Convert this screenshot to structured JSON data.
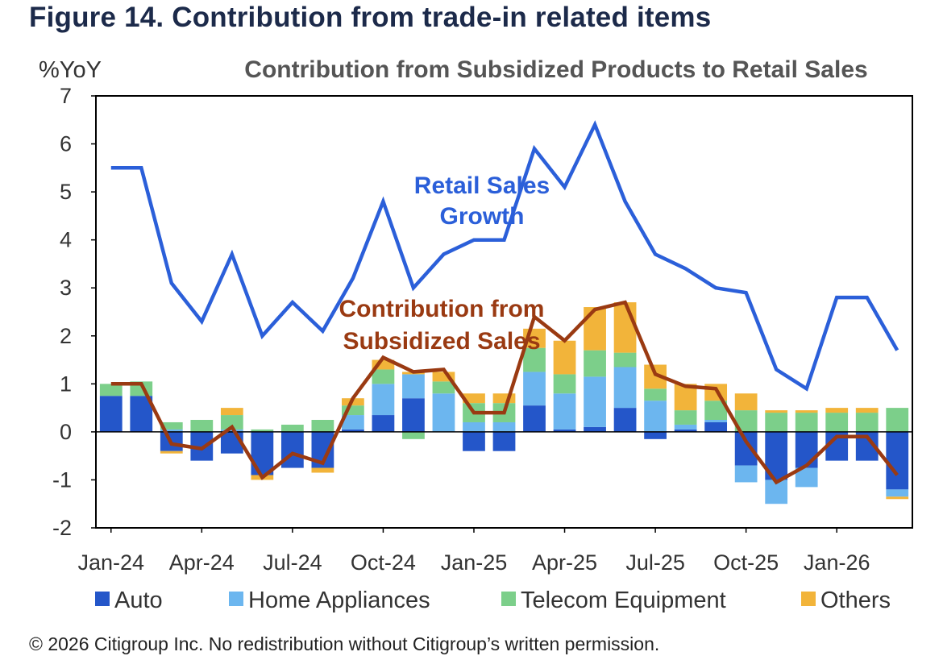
{
  "figure_title": "Figure 14. Contribution from trade-in related items",
  "copyright": "© 2026 Citigroup Inc. No redistribution without Citigroup’s written permission.",
  "colors": {
    "Auto": "#2456c9",
    "Home Appliances": "#6cb6ef",
    "Telecom Equipment": "#7ccf8a",
    "Others": "#f2b43a",
    "Retail Sales Growth": "#2b5fd9",
    "Contribution from Subsidized Sales": "#9a3a12"
  },
  "chart_data": {
    "type": "bar",
    "title": "Contribution from Subsidized Products to Retail Sales",
    "ylabel": "%YoY",
    "xlabel": "",
    "ylim": [
      -2,
      7
    ],
    "yticks": [
      7,
      6,
      5,
      4,
      3,
      2,
      1,
      0,
      -1,
      -2
    ],
    "grid": false,
    "stacked": true,
    "legend_position": "bottom",
    "categories": [
      "Jan-24",
      "Feb-24",
      "Mar-24",
      "Apr-24",
      "May-24",
      "Jun-24",
      "Jul-24",
      "Aug-24",
      "Sep-24",
      "Oct-24",
      "Nov-24",
      "Dec-24",
      "Jan-25",
      "Feb-25",
      "Mar-25",
      "Apr-25",
      "May-25",
      "Jun-25",
      "Jul-25",
      "Aug-25",
      "Sep-25",
      "Oct-25",
      "Nov-25",
      "Dec-25",
      "Jan-26",
      "Feb-26",
      "Mar-26"
    ],
    "xtick_labels": [
      "Jan-24",
      "Apr-24",
      "Jul-24",
      "Oct-24",
      "Jan-25",
      "Apr-25",
      "Jul-25",
      "Oct-25",
      "Jan-26"
    ],
    "series": [
      {
        "name": "Auto",
        "kind": "bar",
        "values": [
          0.75,
          0.75,
          -0.4,
          -0.6,
          -0.45,
          -0.9,
          -0.75,
          -0.75,
          0.05,
          0.35,
          0.7,
          0,
          -0.4,
          -0.4,
          0.55,
          0.05,
          0.1,
          0.5,
          -0.15,
          0.05,
          0.2,
          -0.7,
          -1.0,
          -0.75,
          -0.6,
          -0.6,
          -1.2
        ]
      },
      {
        "name": "Home Appliances",
        "kind": "bar",
        "values": [
          0,
          0,
          0.05,
          0,
          0.05,
          0,
          0,
          0,
          0.3,
          0.65,
          0.5,
          0.8,
          0.2,
          0.2,
          0.7,
          0.75,
          1.05,
          0.85,
          0.65,
          0.1,
          0.05,
          -0.35,
          -0.5,
          -0.4,
          0,
          0,
          -0.15
        ]
      },
      {
        "name": "Telecom Equipment",
        "kind": "bar",
        "values": [
          0.25,
          0.3,
          0.15,
          0.25,
          0.3,
          0.05,
          0.15,
          0.25,
          0.2,
          0.3,
          -0.15,
          0.25,
          0.4,
          0.4,
          0.5,
          0.4,
          0.55,
          0.3,
          0.25,
          0.3,
          0.4,
          0.45,
          0.4,
          0.4,
          0.4,
          0.4,
          0.5
        ]
      },
      {
        "name": "Others",
        "kind": "bar",
        "values": [
          0,
          0,
          -0.05,
          0,
          0.15,
          -0.1,
          0,
          -0.1,
          0.15,
          0.2,
          0.05,
          0.2,
          0.2,
          0.2,
          0.4,
          0.7,
          0.9,
          1.05,
          0.5,
          0.55,
          0.35,
          0.35,
          0.05,
          0.05,
          0.1,
          0.1,
          -0.05
        ]
      },
      {
        "name": "Retail Sales Growth",
        "kind": "line",
        "label": [
          "Retail Sales",
          "Growth"
        ],
        "values": [
          5.5,
          5.5,
          3.1,
          2.3,
          3.7,
          2.0,
          2.7,
          2.1,
          3.2,
          4.8,
          3.0,
          3.7,
          4.0,
          4.0,
          5.9,
          5.1,
          6.4,
          4.8,
          3.7,
          3.4,
          3.0,
          2.9,
          1.3,
          0.9,
          2.8,
          2.8,
          1.7
        ]
      },
      {
        "name": "Contribution from Subsidized Sales",
        "kind": "line",
        "label": [
          "Contribution from",
          "Subsidized Sales"
        ],
        "values": [
          1.0,
          1.0,
          -0.25,
          -0.35,
          0.1,
          -0.95,
          -0.45,
          -0.65,
          0.7,
          1.55,
          1.25,
          1.3,
          0.4,
          0.4,
          2.4,
          1.9,
          2.55,
          2.7,
          1.2,
          0.95,
          0.9,
          -0.2,
          -1.05,
          -0.7,
          -0.1,
          -0.1,
          -0.9
        ]
      }
    ],
    "legend": [
      "Auto",
      "Home Appliances",
      "Telecom Equipment",
      "Others"
    ]
  }
}
